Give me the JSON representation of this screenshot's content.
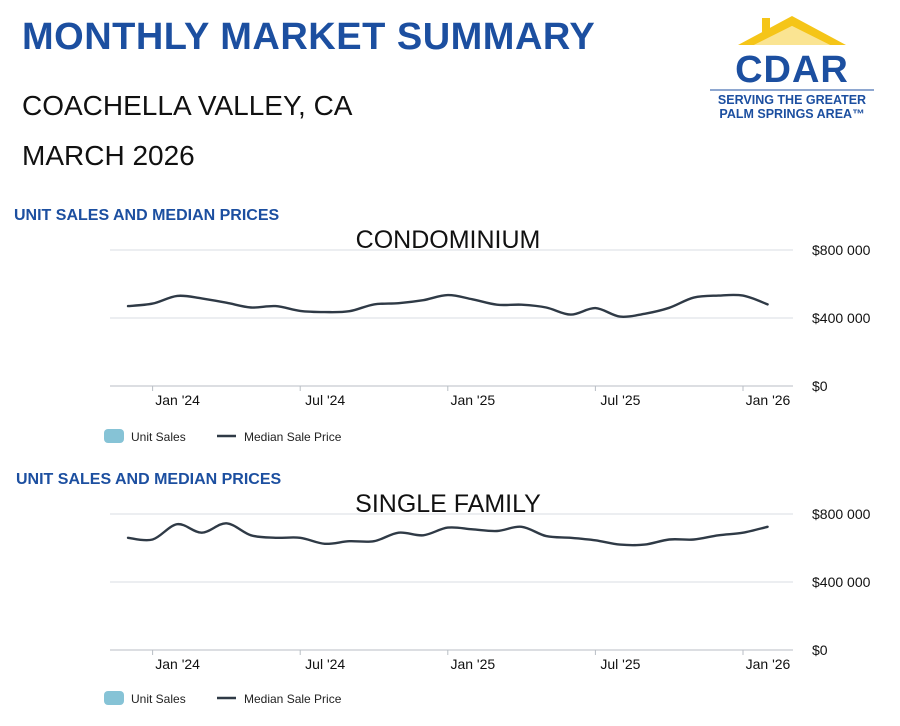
{
  "header": {
    "title": "MONTHLY MARKET SUMMARY",
    "region": "COACHELLA VALLEY, CA",
    "period": "MARCH  2026"
  },
  "logo": {
    "name": "CDAR",
    "tagline_1": "SERVING THE GREATER",
    "tagline_2": "PALM SPRINGS AREA™",
    "roof_color": "#f5c518",
    "text_color": "#1c4fa0"
  },
  "colors": {
    "heading": "#1c4fa0",
    "line": "#2f3a46",
    "unit_sales_swatch": "#86c3d6",
    "grid": "#d9dee3"
  },
  "chart_data": [
    {
      "type": "line",
      "section_label": "UNIT SALES AND MEDIAN PRICES",
      "title": "CONDOMINIUM",
      "x_ticks": [
        "Jan '24",
        "Jul '24",
        "Jan '25",
        "Jul '25",
        "Jan '26"
      ],
      "y_ticks": [
        "$0",
        "$400 000",
        "$800 000"
      ],
      "ylim": [
        0,
        800000
      ],
      "grid": true,
      "legend": [
        "Unit Sales",
        "Median Sale Price"
      ],
      "legend_position": "bottom-left",
      "x": [
        "2023-12",
        "2024-01",
        "2024-02",
        "2024-03",
        "2024-04",
        "2024-05",
        "2024-06",
        "2024-07",
        "2024-08",
        "2024-09",
        "2024-10",
        "2024-11",
        "2024-12",
        "2025-01",
        "2025-02",
        "2025-03",
        "2025-04",
        "2025-05",
        "2025-06",
        "2025-07",
        "2025-08",
        "2025-09",
        "2025-10",
        "2025-11",
        "2025-12",
        "2026-01",
        "2026-02"
      ],
      "series": [
        {
          "name": "Median Sale Price",
          "values": [
            470000,
            485000,
            530000,
            515000,
            490000,
            462000,
            470000,
            442000,
            435000,
            440000,
            480000,
            487000,
            505000,
            535000,
            510000,
            478000,
            478000,
            462000,
            420000,
            458000,
            408000,
            425000,
            460000,
            520000,
            532000,
            532000,
            480000
          ]
        }
      ]
    },
    {
      "type": "line",
      "section_label": "UNIT SALES AND MEDIAN PRICES",
      "title": "SINGLE FAMILY",
      "x_ticks": [
        "Jan '24",
        "Jul '24",
        "Jan '25",
        "Jul '25",
        "Jan '26"
      ],
      "y_ticks": [
        "$0",
        "$400 000",
        "$800 000"
      ],
      "ylim": [
        0,
        800000
      ],
      "grid": true,
      "legend": [
        "Unit Sales",
        "Median Sale Price"
      ],
      "legend_position": "bottom-left",
      "x": [
        "2023-12",
        "2024-01",
        "2024-02",
        "2024-03",
        "2024-04",
        "2024-05",
        "2024-06",
        "2024-07",
        "2024-08",
        "2024-09",
        "2024-10",
        "2024-11",
        "2024-12",
        "2025-01",
        "2025-02",
        "2025-03",
        "2025-04",
        "2025-05",
        "2025-06",
        "2025-07",
        "2025-08",
        "2025-09",
        "2025-10",
        "2025-11",
        "2025-12",
        "2026-01",
        "2026-02"
      ],
      "series": [
        {
          "name": "Median Sale Price",
          "values": [
            660000,
            650000,
            740000,
            690000,
            745000,
            675000,
            660000,
            660000,
            625000,
            640000,
            640000,
            690000,
            675000,
            720000,
            710000,
            700000,
            725000,
            670000,
            660000,
            645000,
            620000,
            620000,
            650000,
            650000,
            675000,
            690000,
            725000
          ]
        }
      ]
    }
  ]
}
